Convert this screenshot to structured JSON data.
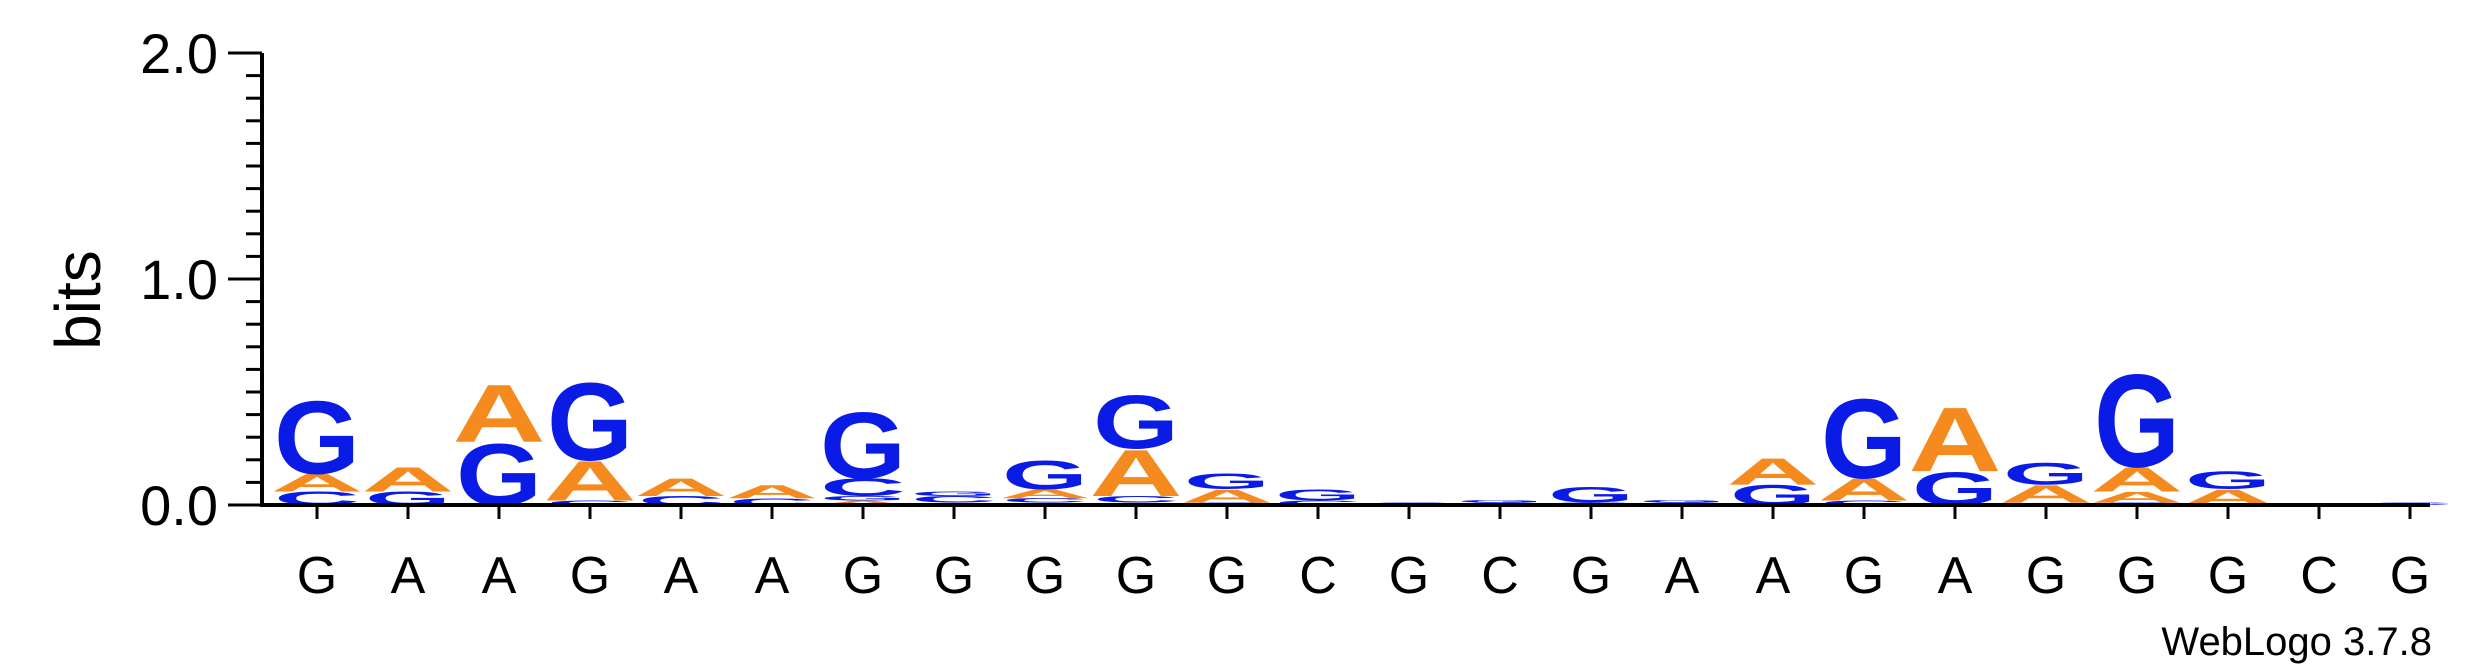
{
  "chart_data": {
    "type": "sequence-logo",
    "ylabel": "bits",
    "ylim": [
      0,
      2.0
    ],
    "yticks": [
      "0.0",
      "1.0",
      "2.0"
    ],
    "positions": [
      "G",
      "A",
      "A",
      "G",
      "A",
      "A",
      "G",
      "G",
      "G",
      "G",
      "G",
      "C",
      "G",
      "C",
      "G",
      "A",
      "A",
      "G",
      "A",
      "G",
      "G",
      "G",
      "C",
      "G"
    ],
    "colors": {
      "A": "#f58a1f",
      "G": "#0a1be6",
      "C": "#0a1be6",
      "T": "#0a1be6"
    },
    "stacks": [
      [
        [
          "C",
          0.06
        ],
        [
          "A",
          0.08
        ],
        [
          "G",
          0.33
        ]
      ],
      [
        [
          "G",
          0.06
        ],
        [
          "A",
          0.11
        ]
      ],
      [
        [
          "G",
          0.28
        ],
        [
          "A",
          0.26
        ]
      ],
      [
        [
          "C",
          0.02
        ],
        [
          "A",
          0.18
        ],
        [
          "G",
          0.35
        ]
      ],
      [
        [
          "C",
          0.04
        ],
        [
          "A",
          0.08
        ]
      ],
      [
        [
          "C",
          0.03
        ],
        [
          "A",
          0.06
        ]
      ],
      [
        [
          "A",
          0.02
        ],
        [
          "G",
          0.02
        ],
        [
          "C",
          0.08
        ],
        [
          "G",
          0.3
        ]
      ],
      [
        [
          "A",
          0.01
        ],
        [
          "C",
          0.03
        ],
        [
          "G",
          0.02
        ]
      ],
      [
        [
          "A",
          0.01
        ],
        [
          "C",
          0.02
        ],
        [
          "A",
          0.04
        ],
        [
          "G",
          0.13
        ]
      ],
      [
        [
          "A",
          0.01
        ],
        [
          "C",
          0.03
        ],
        [
          "A",
          0.21
        ],
        [
          "G",
          0.24
        ]
      ],
      [
        [
          "C",
          0.01
        ],
        [
          "A",
          0.06
        ],
        [
          "G",
          0.07
        ]
      ],
      [
        [
          "C",
          0.02
        ],
        [
          "G",
          0.05
        ]
      ],
      [
        [
          "C",
          0.01
        ]
      ],
      [
        [
          "C",
          0.01
        ],
        [
          "G",
          0.01
        ]
      ],
      [
        [
          "C",
          0.01
        ],
        [
          "G",
          0.07
        ]
      ],
      [
        [
          "C",
          0.01
        ],
        [
          "G",
          0.01
        ]
      ],
      [
        [
          "G",
          0.09
        ],
        [
          "A",
          0.12
        ]
      ],
      [
        [
          "C",
          0.02
        ],
        [
          "A",
          0.1
        ],
        [
          "G",
          0.36
        ]
      ],
      [
        [
          "G",
          0.15
        ],
        [
          "A",
          0.29
        ]
      ],
      [
        [
          "A",
          0.01
        ],
        [
          "A",
          0.08
        ],
        [
          "G",
          0.1
        ]
      ],
      [
        [
          "C",
          0.01
        ],
        [
          "A",
          0.05
        ],
        [
          "A",
          0.11
        ],
        [
          "G",
          0.42
        ]
      ],
      [
        [
          "A",
          0.07
        ],
        [
          "G",
          0.08
        ]
      ],
      [],
      [
        [
          "C",
          0.01
        ]
      ]
    ],
    "footer": "WebLogo 3.7.8"
  }
}
